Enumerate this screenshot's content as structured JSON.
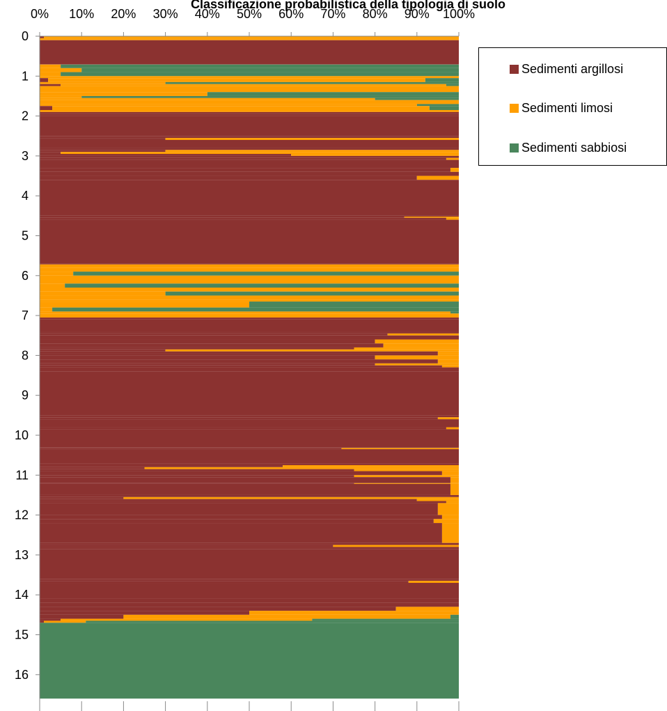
{
  "chart_data": {
    "type": "area",
    "orientation": "horizontal-stacked-100",
    "title": "Classificazione probabilistica della tipologia di suolo",
    "xlabel": "",
    "ylabel": "",
    "x_ticks": [
      "0%",
      "10%",
      "20%",
      "30%",
      "40%",
      "50%",
      "60%",
      "70%",
      "80%",
      "90%",
      "100%"
    ],
    "y_ticks": [
      "0",
      "1",
      "2",
      "3",
      "4",
      "5",
      "6",
      "7",
      "8",
      "9",
      "10",
      "11",
      "12",
      "13",
      "14",
      "15",
      "16"
    ],
    "xlim": [
      0,
      100
    ],
    "ylim": [
      0,
      16.6
    ],
    "legend_position": "top-right",
    "grid": false,
    "series": [
      {
        "name": "Sedimenti argillosi",
        "color": "#8B3230"
      },
      {
        "name": "Sedimenti limosi",
        "color": "#FF9E00"
      },
      {
        "name": "Sedimenti sabbiosi",
        "color": "#4A865C"
      }
    ],
    "depth": [
      0.0,
      0.05,
      0.08,
      0.1,
      0.7,
      0.71,
      0.8,
      0.9,
      1.0,
      1.05,
      1.15,
      1.2,
      1.25,
      1.3,
      1.4,
      1.5,
      1.55,
      1.6,
      1.7,
      1.75,
      1.85,
      1.9,
      1.95,
      2.0,
      2.5,
      2.55,
      2.6,
      2.8,
      2.85,
      2.9,
      2.95,
      3.0,
      3.05,
      3.1,
      3.3,
      3.4,
      3.5,
      3.6,
      4.5,
      4.52,
      4.55,
      4.6,
      5.7,
      5.72,
      5.8,
      5.9,
      6.0,
      6.2,
      6.3,
      6.4,
      6.5,
      6.6,
      6.65,
      6.8,
      6.9,
      6.95,
      7.05,
      7.1,
      7.4,
      7.45,
      7.5,
      7.6,
      7.7,
      7.8,
      7.85,
      7.9,
      7.95,
      8.0,
      8.1,
      8.2,
      8.25,
      8.3,
      8.4,
      9.5,
      9.55,
      9.6,
      9.8,
      9.85,
      10.3,
      10.32,
      10.35,
      10.7,
      10.75,
      10.8,
      10.85,
      10.9,
      11.0,
      11.05,
      11.2,
      11.22,
      11.5,
      11.55,
      11.6,
      11.65,
      11.7,
      12.0,
      12.1,
      12.2,
      12.7,
      12.75,
      12.8,
      12.85,
      13.6,
      13.65,
      13.7,
      14.1,
      14.2,
      14.3,
      14.4,
      14.5,
      14.6,
      14.65,
      14.7,
      16.6
    ],
    "argillosi": [
      1,
      0,
      0,
      100,
      100,
      0,
      0,
      0,
      0,
      2,
      0,
      5,
      0,
      0,
      0,
      0,
      0,
      0,
      0,
      3,
      0,
      100,
      100,
      100,
      100,
      30,
      100,
      100,
      30,
      5,
      60,
      100,
      97,
      100,
      98,
      100,
      90,
      100,
      100,
      87,
      97,
      100,
      100,
      0,
      0,
      0,
      0,
      0,
      0,
      0,
      0,
      0,
      0,
      0,
      0,
      0,
      100,
      100,
      100,
      83,
      100,
      80,
      82,
      75,
      30,
      95,
      95,
      80,
      95,
      80,
      96,
      100,
      100,
      100,
      95,
      100,
      97,
      100,
      100,
      72,
      100,
      100,
      58,
      25,
      75,
      96,
      75,
      98,
      75,
      98,
      100,
      20,
      90,
      97,
      95,
      96,
      94,
      96,
      100,
      70,
      100,
      100,
      100,
      88,
      100,
      100,
      100,
      85,
      50,
      20,
      5,
      1,
      0,
      0
    ],
    "limosi": [
      99,
      100,
      100,
      0,
      0,
      5,
      10,
      5,
      100,
      90,
      30,
      92,
      100,
      100,
      40,
      10,
      80,
      100,
      90,
      90,
      100,
      0,
      0,
      0,
      0,
      70,
      0,
      0,
      70,
      95,
      40,
      0,
      3,
      0,
      2,
      0,
      10,
      0,
      0,
      13,
      3,
      0,
      0,
      100,
      100,
      8,
      100,
      6,
      100,
      30,
      100,
      100,
      50,
      3,
      98,
      100,
      0,
      0,
      0,
      17,
      0,
      20,
      18,
      25,
      70,
      5,
      5,
      20,
      5,
      20,
      4,
      0,
      0,
      0,
      5,
      0,
      3,
      0,
      0,
      28,
      0,
      0,
      42,
      75,
      25,
      4,
      25,
      2,
      25,
      2,
      0,
      80,
      10,
      3,
      5,
      4,
      6,
      4,
      0,
      30,
      0,
      0,
      0,
      12,
      0,
      0,
      0,
      15,
      50,
      78,
      60,
      10,
      0,
      0
    ],
    "sabbiosi": [
      0,
      0,
      0,
      0,
      0,
      95,
      90,
      95,
      0,
      8,
      70,
      3,
      0,
      0,
      60,
      90,
      20,
      0,
      10,
      7,
      0,
      0,
      0,
      0,
      0,
      0,
      0,
      0,
      0,
      0,
      0,
      0,
      0,
      0,
      0,
      0,
      0,
      0,
      0,
      0,
      0,
      0,
      0,
      0,
      0,
      92,
      0,
      94,
      0,
      70,
      0,
      0,
      50,
      97,
      2,
      0,
      0,
      0,
      0,
      0,
      0,
      0,
      0,
      0,
      0,
      0,
      0,
      0,
      0,
      0,
      0,
      0,
      0,
      0,
      0,
      0,
      0,
      0,
      0,
      0,
      0,
      0,
      0,
      0,
      0,
      0,
      0,
      0,
      0,
      0,
      0,
      0,
      0,
      0,
      0,
      0,
      0,
      0,
      0,
      0,
      0,
      0,
      0,
      0,
      0,
      0,
      0,
      0,
      0,
      2,
      35,
      89,
      100,
      100
    ]
  }
}
